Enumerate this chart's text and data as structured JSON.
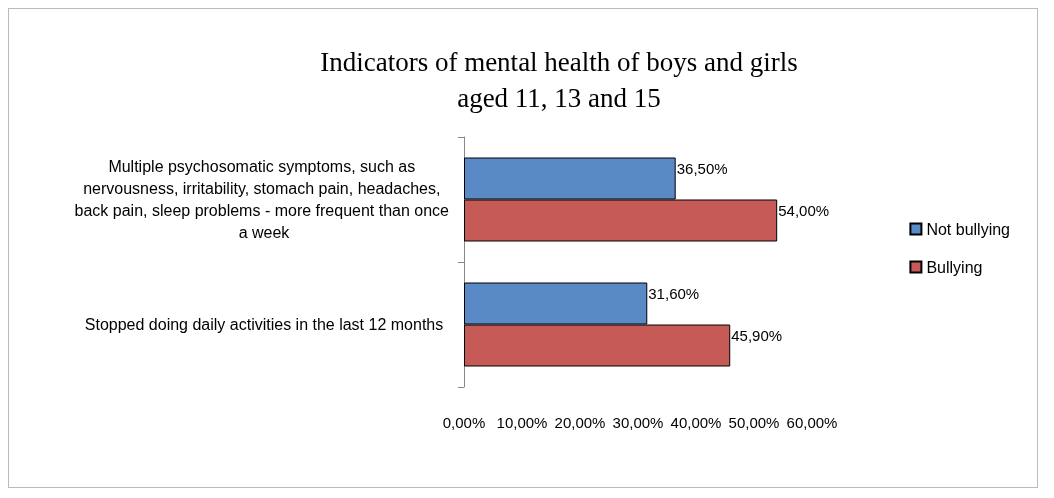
{
  "chart_data": {
    "type": "bar",
    "orientation": "horizontal",
    "title": "Indicators of mental health of boys and girls\naged 11, 13 and 15",
    "categories": [
      "Multiple psychosomatic symptoms, such as nervousness, irritability, stomach pain, headaches, back pain, sleep problems - more frequent than once a week",
      "Stopped doing daily activities in the last 12 months"
    ],
    "series": [
      {
        "name": "Not bullying",
        "color": "#5a8ac6",
        "values": [
          36.5,
          31.6
        ],
        "value_labels": [
          "36,50%",
          "31,60%"
        ]
      },
      {
        "name": "Bullying",
        "color": "#c55a57",
        "values": [
          54.0,
          45.9
        ],
        "value_labels": [
          "54,00%",
          "45,90%"
        ]
      }
    ],
    "xlim": [
      0,
      60
    ],
    "xticks": [
      {
        "value": 0,
        "label": "0,00%"
      },
      {
        "value": 10,
        "label": "10,00%"
      },
      {
        "value": 20,
        "label": "20,00%"
      },
      {
        "value": 30,
        "label": "30,00%"
      },
      {
        "value": 40,
        "label": "40,00%"
      },
      {
        "value": 50,
        "label": "50,00%"
      },
      {
        "value": 60,
        "label": "60,00%"
      }
    ],
    "grid": false,
    "legend": "right"
  }
}
